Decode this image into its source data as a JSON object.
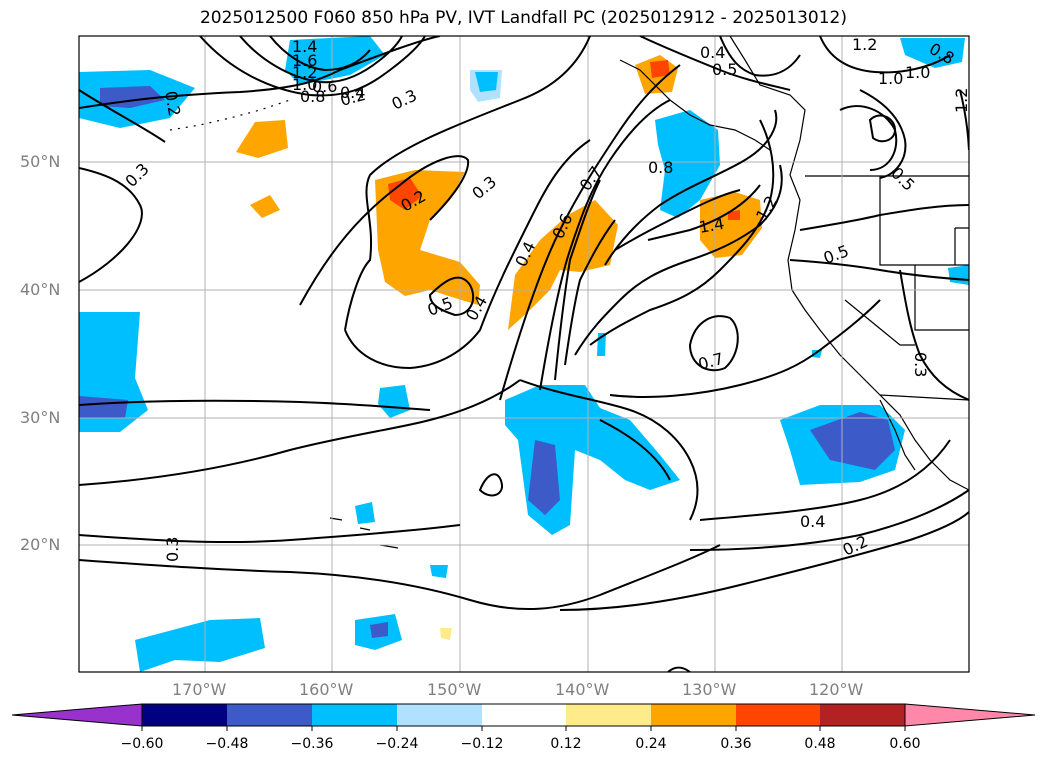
{
  "title": "2025012500 F060 850 hPa PV, IVT Landfall PC (2025012912 - 2025013012)",
  "lat_labels": [
    "50°N",
    "40°N",
    "30°N",
    "20°N"
  ],
  "lon_labels": [
    "170°W",
    "160°W",
    "150°W",
    "140°W",
    "130°W",
    "120°W"
  ],
  "contour_labels": [
    "1.4",
    "1.6",
    "1.2",
    "1.0",
    "0.8",
    "0.6",
    "0.4",
    "0.3",
    "0.2",
    "0.3",
    "0.3",
    "0.2",
    "0.5",
    "0.4",
    "0.3",
    "0.4",
    "0.6",
    "0.7",
    "0.8",
    "0.4",
    "0.5",
    "1.4",
    "1.2",
    "1.0",
    "1.2",
    "1.0",
    "0.5",
    "0.5",
    "0.7",
    "0.3",
    "0.4",
    "0.2",
    "0.2",
    "1.2",
    "0.8"
  ],
  "colorbar": {
    "ticks": [
      "−0.60",
      "−0.48",
      "−0.36",
      "−0.24",
      "−0.12",
      "0.12",
      "0.24",
      "0.36",
      "0.48",
      "0.60"
    ],
    "colors": [
      "#9932cc",
      "#000080",
      "#3c5ac8",
      "#00bfff",
      "#b0e2ff",
      "#ffffff",
      "#ffeb8a",
      "#ffa500",
      "#ff4500",
      "#b22222",
      "#ff88aa"
    ]
  },
  "shading": {
    "positive": "#ffa500",
    "strong_positive": "#ff4500",
    "light_positive": "#ffeb8a",
    "negative": "#00bfff",
    "strong_negative": "#3c5ac8",
    "light_negative": "#b0e2ff"
  }
}
